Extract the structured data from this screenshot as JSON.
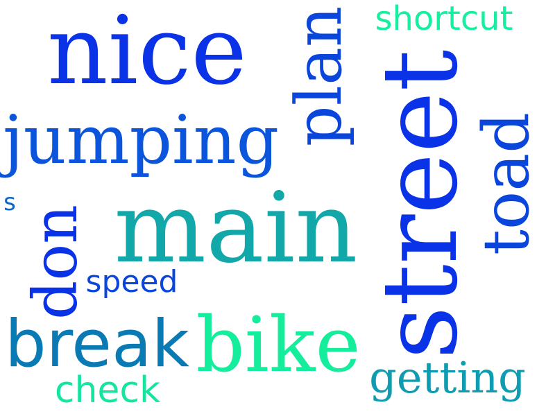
{
  "words": [
    {
      "id": "nice",
      "text": "nice",
      "color": "#0a32e6"
    },
    {
      "id": "jumping",
      "text": "jumping",
      "color": "#0a55dc"
    },
    {
      "id": "shortcut",
      "text": "shortcut",
      "color": "#14f0a0"
    },
    {
      "id": "s",
      "text": "s",
      "color": "#0a64c8"
    },
    {
      "id": "main",
      "text": "main",
      "color": "#12a8aa"
    },
    {
      "id": "speed",
      "text": "speed",
      "color": "#0a46dc"
    },
    {
      "id": "break",
      "text": "break",
      "color": "#0a7ab4"
    },
    {
      "id": "bike",
      "text": "bike",
      "color": "#14ee9c"
    },
    {
      "id": "check",
      "text": "check",
      "color": "#14e6a0"
    },
    {
      "id": "getting",
      "text": "getting",
      "color": "#109cb0"
    },
    {
      "id": "plan",
      "text": "plan",
      "color": "#0a46dc"
    },
    {
      "id": "street",
      "text": "street",
      "color": "#0a32e6"
    },
    {
      "id": "toad",
      "text": "toad",
      "color": "#0a46dc"
    },
    {
      "id": "don",
      "text": "don",
      "color": "#0a32e6"
    }
  ]
}
